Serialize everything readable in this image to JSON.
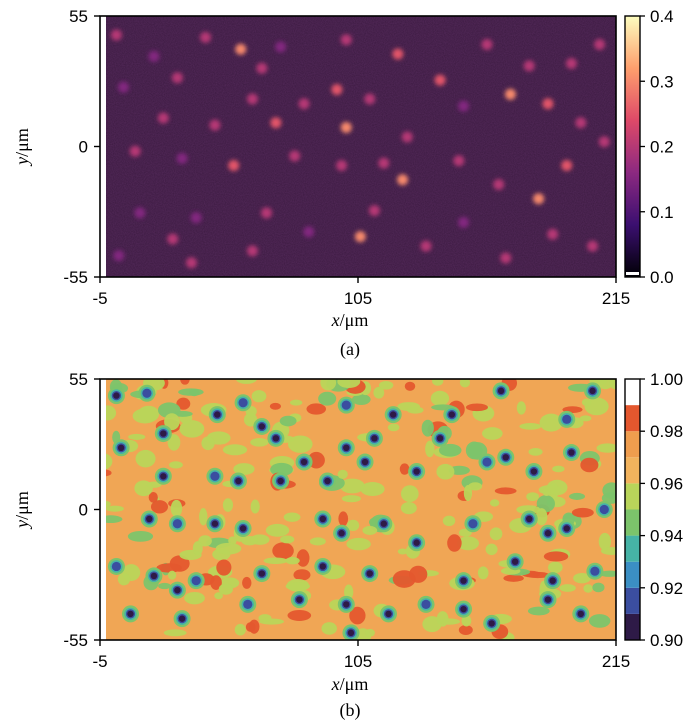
{
  "chart_data": [
    {
      "type": "heatmap",
      "panel_label": "(a)",
      "xlabel_var": "x",
      "xlabel_unit": "/μm",
      "ylabel_var": "y",
      "ylabel_unit": "/μm",
      "xlim": [
        -5,
        215
      ],
      "ylim": [
        -55,
        55
      ],
      "x_ticks": [
        "-5",
        "105",
        "215"
      ],
      "y_ticks": [
        "55",
        "0",
        "-55"
      ],
      "colorbar": {
        "range": [
          0.0,
          0.4
        ],
        "ticks": [
          "0.4",
          "0.3",
          "0.2",
          "0.1",
          "0.0"
        ],
        "tick_values": [
          0.4,
          0.3,
          0.2,
          0.1,
          0.0
        ],
        "colormap": [
          "#000004",
          "#3b0f70",
          "#8c2981",
          "#de4968",
          "#fe9f6d",
          "#fcfdbf"
        ]
      },
      "background_value": 0.05,
      "background_color": "#3b1a40",
      "spots": [
        {
          "x": 2,
          "y": 47,
          "v": 0.2
        },
        {
          "x": 18,
          "y": 38,
          "v": 0.15
        },
        {
          "x": 28,
          "y": 29,
          "v": 0.2
        },
        {
          "x": 40,
          "y": 46,
          "v": 0.2
        },
        {
          "x": 55,
          "y": 41,
          "v": 0.3
        },
        {
          "x": 64,
          "y": 33,
          "v": 0.2
        },
        {
          "x": 72,
          "y": 42,
          "v": 0.15
        },
        {
          "x": 100,
          "y": 45,
          "v": 0.2
        },
        {
          "x": 122,
          "y": 39,
          "v": 0.25
        },
        {
          "x": 140,
          "y": 28,
          "v": 0.25
        },
        {
          "x": 160,
          "y": 43,
          "v": 0.2
        },
        {
          "x": 178,
          "y": 34,
          "v": 0.2
        },
        {
          "x": 196,
          "y": 35,
          "v": 0.2
        },
        {
          "x": 208,
          "y": 43,
          "v": 0.2
        },
        {
          "x": 5,
          "y": 25,
          "v": 0.15
        },
        {
          "x": 22,
          "y": 12,
          "v": 0.2
        },
        {
          "x": 44,
          "y": 9,
          "v": 0.2
        },
        {
          "x": 60,
          "y": 20,
          "v": 0.2
        },
        {
          "x": 70,
          "y": 10,
          "v": 0.25
        },
        {
          "x": 82,
          "y": 18,
          "v": 0.2
        },
        {
          "x": 96,
          "y": 24,
          "v": 0.25
        },
        {
          "x": 100,
          "y": 8,
          "v": 0.3
        },
        {
          "x": 110,
          "y": 20,
          "v": 0.2
        },
        {
          "x": 126,
          "y": 4,
          "v": 0.2
        },
        {
          "x": 150,
          "y": 17,
          "v": 0.15
        },
        {
          "x": 170,
          "y": 22,
          "v": 0.3
        },
        {
          "x": 186,
          "y": 18,
          "v": 0.25
        },
        {
          "x": 200,
          "y": 10,
          "v": 0.2
        },
        {
          "x": 10,
          "y": -2,
          "v": 0.2
        },
        {
          "x": 30,
          "y": -5,
          "v": 0.15
        },
        {
          "x": 52,
          "y": -8,
          "v": 0.25
        },
        {
          "x": 78,
          "y": -4,
          "v": 0.2
        },
        {
          "x": 98,
          "y": -8,
          "v": 0.2
        },
        {
          "x": 116,
          "y": -7,
          "v": 0.2
        },
        {
          "x": 124,
          "y": -14,
          "v": 0.3
        },
        {
          "x": 148,
          "y": -6,
          "v": 0.2
        },
        {
          "x": 165,
          "y": -16,
          "v": 0.2
        },
        {
          "x": 182,
          "y": -22,
          "v": 0.3
        },
        {
          "x": 194,
          "y": -8,
          "v": 0.25
        },
        {
          "x": 210,
          "y": 2,
          "v": 0.2
        },
        {
          "x": 12,
          "y": -28,
          "v": 0.15
        },
        {
          "x": 26,
          "y": -39,
          "v": 0.2
        },
        {
          "x": 36,
          "y": -30,
          "v": 0.15
        },
        {
          "x": 60,
          "y": -44,
          "v": 0.2
        },
        {
          "x": 66,
          "y": -28,
          "v": 0.2
        },
        {
          "x": 84,
          "y": -36,
          "v": 0.15
        },
        {
          "x": 106,
          "y": -38,
          "v": 0.3
        },
        {
          "x": 112,
          "y": -27,
          "v": 0.2
        },
        {
          "x": 134,
          "y": -42,
          "v": 0.2
        },
        {
          "x": 150,
          "y": -32,
          "v": 0.15
        },
        {
          "x": 168,
          "y": -47,
          "v": 0.2
        },
        {
          "x": 188,
          "y": -37,
          "v": 0.2
        },
        {
          "x": 205,
          "y": -42,
          "v": 0.2
        },
        {
          "x": 3,
          "y": -46,
          "v": 0.15
        },
        {
          "x": 34,
          "y": -49,
          "v": 0.2
        }
      ]
    },
    {
      "type": "heatmap",
      "panel_label": "(b)",
      "xlabel_var": "x",
      "xlabel_unit": "/μm",
      "ylabel_var": "y",
      "ylabel_unit": "/μm",
      "xlim": [
        -5,
        215
      ],
      "ylim": [
        -55,
        55
      ],
      "x_ticks": [
        "-5",
        "105",
        "215"
      ],
      "y_ticks": [
        "55",
        "0",
        "-55"
      ],
      "colorbar": {
        "range": [
          0.9,
          1.0
        ],
        "ticks": [
          "1.00",
          "0.98",
          "0.96",
          "0.94",
          "0.92",
          "0.90"
        ],
        "tick_values": [
          1.0,
          0.98,
          0.96,
          0.94,
          0.92,
          0.9
        ],
        "levels": [
          {
            "from": 0.9,
            "to": 0.91,
            "color": "#2e1a47"
          },
          {
            "from": 0.91,
            "to": 0.92,
            "color": "#3b4ea0"
          },
          {
            "from": 0.92,
            "to": 0.93,
            "color": "#3b8fc4"
          },
          {
            "from": 0.93,
            "to": 0.94,
            "color": "#46b3a6"
          },
          {
            "from": 0.94,
            "to": 0.95,
            "color": "#7cc46b"
          },
          {
            "from": 0.95,
            "to": 0.96,
            "color": "#b9d55a"
          },
          {
            "from": 0.96,
            "to": 0.97,
            "color": "#f2b35d"
          },
          {
            "from": 0.97,
            "to": 0.98,
            "color": "#ef9d4e"
          },
          {
            "from": 0.98,
            "to": 0.99,
            "color": "#e4572e"
          },
          {
            "from": 0.99,
            "to": 1.0,
            "color": "#ffffff"
          }
        ]
      },
      "background_value": 0.97,
      "background_color": "#f0a655",
      "spots": [
        {
          "x": 2,
          "y": 48,
          "v": 0.9
        },
        {
          "x": 15,
          "y": 49,
          "v": 0.91
        },
        {
          "x": 22,
          "y": 32,
          "v": 0.9
        },
        {
          "x": 45,
          "y": 40,
          "v": 0.9
        },
        {
          "x": 56,
          "y": 45,
          "v": 0.91
        },
        {
          "x": 64,
          "y": 35,
          "v": 0.9
        },
        {
          "x": 70,
          "y": 30,
          "v": 0.9
        },
        {
          "x": 100,
          "y": 44,
          "v": 0.91
        },
        {
          "x": 120,
          "y": 40,
          "v": 0.9
        },
        {
          "x": 140,
          "y": 30,
          "v": 0.9
        },
        {
          "x": 145,
          "y": 40,
          "v": 0.9
        },
        {
          "x": 166,
          "y": 50,
          "v": 0.9
        },
        {
          "x": 194,
          "y": 38,
          "v": 0.91
        },
        {
          "x": 205,
          "y": 50,
          "v": 0.9
        },
        {
          "x": 4,
          "y": 26,
          "v": 0.9
        },
        {
          "x": 22,
          "y": 14,
          "v": 0.9
        },
        {
          "x": 44,
          "y": 14,
          "v": 0.91
        },
        {
          "x": 54,
          "y": 12,
          "v": 0.9
        },
        {
          "x": 72,
          "y": 12,
          "v": 0.9
        },
        {
          "x": 82,
          "y": 20,
          "v": 0.9
        },
        {
          "x": 92,
          "y": 12,
          "v": 0.9
        },
        {
          "x": 100,
          "y": 26,
          "v": 0.9
        },
        {
          "x": 108,
          "y": 20,
          "v": 0.9
        },
        {
          "x": 112,
          "y": 30,
          "v": 0.9
        },
        {
          "x": 130,
          "y": 16,
          "v": 0.9
        },
        {
          "x": 160,
          "y": 20,
          "v": 0.91
        },
        {
          "x": 168,
          "y": 22,
          "v": 0.9
        },
        {
          "x": 180,
          "y": 16,
          "v": 0.9
        },
        {
          "x": 196,
          "y": 24,
          "v": 0.9
        },
        {
          "x": 16,
          "y": -4,
          "v": 0.9
        },
        {
          "x": 28,
          "y": -6,
          "v": 0.91
        },
        {
          "x": 44,
          "y": -6,
          "v": 0.9
        },
        {
          "x": 56,
          "y": -8,
          "v": 0.9
        },
        {
          "x": 90,
          "y": -4,
          "v": 0.9
        },
        {
          "x": 98,
          "y": -10,
          "v": 0.9
        },
        {
          "x": 116,
          "y": -6,
          "v": 0.9
        },
        {
          "x": 130,
          "y": -14,
          "v": 0.9
        },
        {
          "x": 154,
          "y": -6,
          "v": 0.91
        },
        {
          "x": 178,
          "y": -4,
          "v": 0.9
        },
        {
          "x": 186,
          "y": -10,
          "v": 0.9
        },
        {
          "x": 194,
          "y": -8,
          "v": 0.9
        },
        {
          "x": 210,
          "y": 0,
          "v": 0.91
        },
        {
          "x": 2,
          "y": -24,
          "v": 0.91
        },
        {
          "x": 18,
          "y": -28,
          "v": 0.9
        },
        {
          "x": 28,
          "y": -34,
          "v": 0.9
        },
        {
          "x": 36,
          "y": -30,
          "v": 0.91
        },
        {
          "x": 64,
          "y": -27,
          "v": 0.9
        },
        {
          "x": 90,
          "y": -24,
          "v": 0.9
        },
        {
          "x": 110,
          "y": -27,
          "v": 0.9
        },
        {
          "x": 150,
          "y": -30,
          "v": 0.9
        },
        {
          "x": 172,
          "y": -22,
          "v": 0.9
        },
        {
          "x": 188,
          "y": -30,
          "v": 0.9
        },
        {
          "x": 206,
          "y": -26,
          "v": 0.91
        },
        {
          "x": 8,
          "y": -44,
          "v": 0.9
        },
        {
          "x": 30,
          "y": -46,
          "v": 0.9
        },
        {
          "x": 58,
          "y": -40,
          "v": 0.91
        },
        {
          "x": 80,
          "y": -38,
          "v": 0.9
        },
        {
          "x": 100,
          "y": -40,
          "v": 0.9
        },
        {
          "x": 102,
          "y": -52,
          "v": 0.9
        },
        {
          "x": 118,
          "y": -44,
          "v": 0.9
        },
        {
          "x": 134,
          "y": -40,
          "v": 0.91
        },
        {
          "x": 150,
          "y": -42,
          "v": 0.9
        },
        {
          "x": 162,
          "y": -48,
          "v": 0.9
        },
        {
          "x": 186,
          "y": -38,
          "v": 0.9
        },
        {
          "x": 200,
          "y": -44,
          "v": 0.9
        }
      ]
    }
  ]
}
